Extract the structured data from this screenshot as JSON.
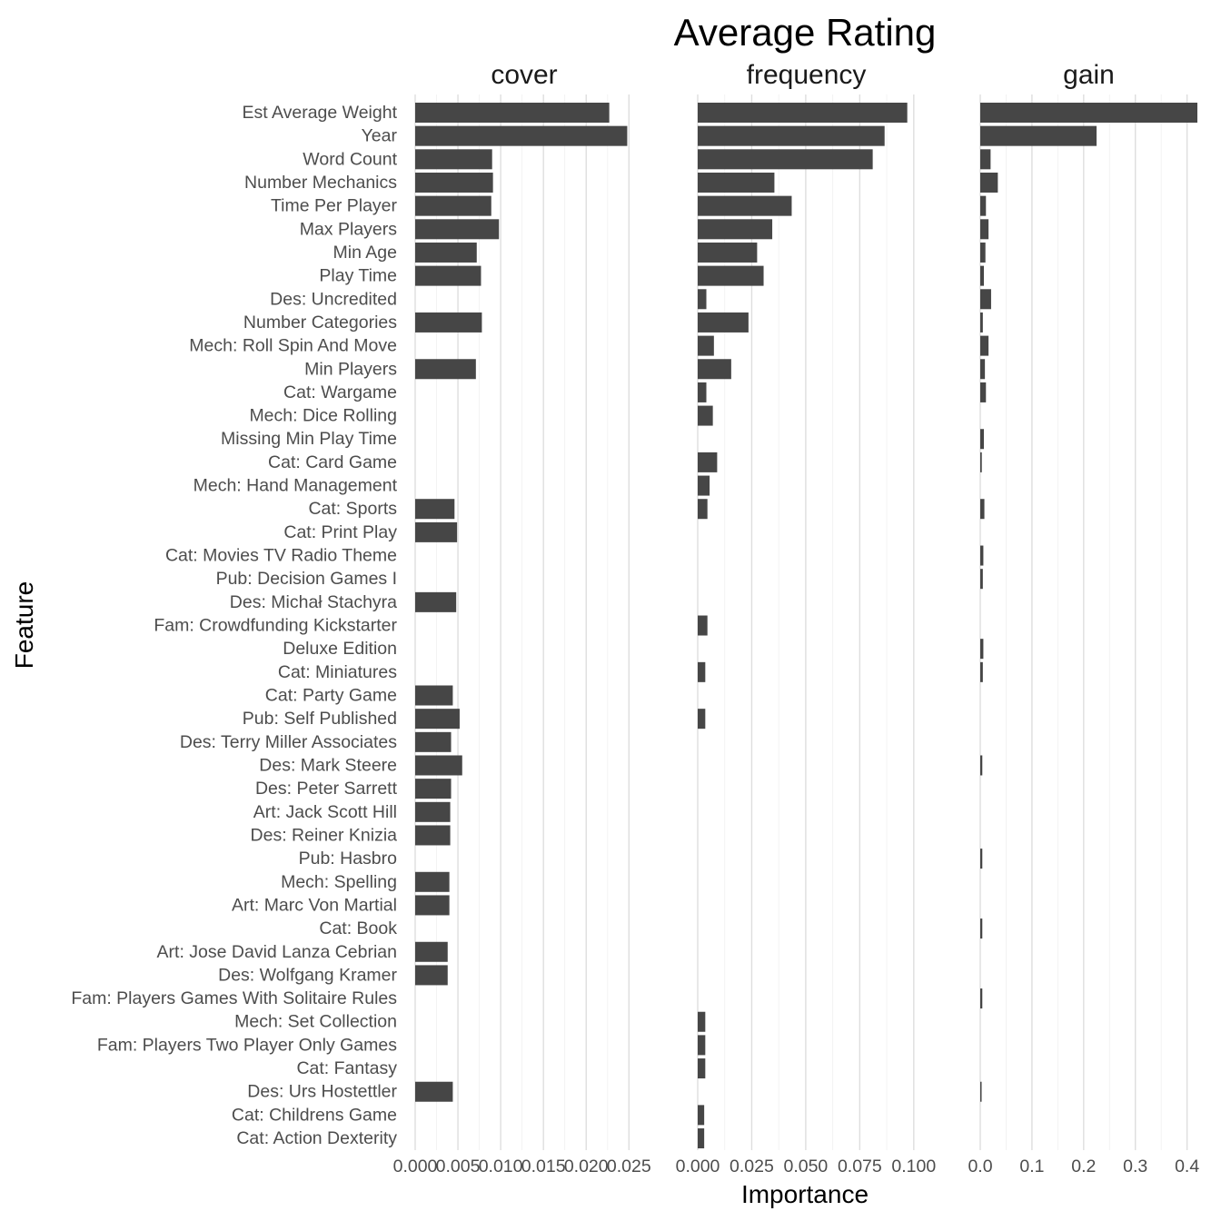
{
  "chart_data": {
    "type": "bar",
    "orientation": "horizontal",
    "title": "Average Rating",
    "xlabel": "Importance",
    "ylabel": "Feature",
    "grid": true,
    "bar_color": "#464646",
    "categories": [
      "Est Average Weight",
      "Year",
      "Word Count",
      "Number Mechanics",
      "Time Per Player",
      "Max Players",
      "Min Age",
      "Play Time",
      "Des: Uncredited",
      "Number Categories",
      "Mech: Roll Spin And Move",
      "Min Players",
      "Cat: Wargame",
      "Mech: Dice Rolling",
      "Missing Min Play Time",
      "Cat: Card Game",
      "Mech: Hand Management",
      "Cat: Sports",
      "Cat: Print Play",
      "Cat: Movies TV Radio Theme",
      "Pub: Decision Games I",
      "Des: Michał Stachyra",
      "Fam: Crowdfunding Kickstarter",
      "Deluxe Edition",
      "Cat: Miniatures",
      "Cat: Party Game",
      "Pub: Self Published",
      "Des: Terry Miller Associates",
      "Des: Mark Steere",
      "Des: Peter Sarrett",
      "Art: Jack Scott Hill",
      "Des: Reiner Knizia",
      "Pub: Hasbro",
      "Mech: Spelling",
      "Art: Marc Von Martial",
      "Cat: Book",
      "Art: Jose David Lanza Cebrian",
      "Des: Wolfgang Kramer",
      "Fam: Players Games With Solitaire Rules",
      "Mech: Set Collection",
      "Fam: Players Two Player Only Games",
      "Cat: Fantasy",
      "Des: Urs Hostettler",
      "Cat: Childrens Game",
      "Cat: Action Dexterity"
    ],
    "panels": [
      {
        "name": "cover",
        "xlim": [
          0,
          0.0255
        ],
        "ticks": [
          0.0,
          0.005,
          0.01,
          0.015,
          0.02,
          0.025
        ],
        "tick_labels": [
          "0.000",
          "0.005",
          "0.010",
          "0.015",
          "0.020",
          "0.025"
        ],
        "values": [
          0.0227,
          0.0248,
          0.009,
          0.0091,
          0.0089,
          0.0098,
          0.0072,
          0.0077,
          null,
          0.0078,
          null,
          0.0071,
          null,
          null,
          null,
          null,
          null,
          0.0046,
          0.0049,
          null,
          null,
          0.0048,
          null,
          null,
          null,
          0.0044,
          0.0052,
          0.0042,
          0.0055,
          0.0042,
          0.0041,
          0.0041,
          null,
          0.004,
          0.004,
          null,
          0.0038,
          0.0038,
          null,
          null,
          null,
          null,
          0.0044,
          null,
          null
        ]
      },
      {
        "name": "frequency",
        "xlim": [
          0,
          0.1005
        ],
        "ticks": [
          0.0,
          0.025,
          0.05,
          0.075,
          0.1
        ],
        "tick_labels": [
          "0.000",
          "0.025",
          "0.050",
          "0.075",
          "0.100"
        ],
        "values": [
          0.097,
          0.0865,
          0.081,
          0.0355,
          0.0435,
          0.0345,
          0.0275,
          0.0305,
          0.004,
          0.0235,
          0.0075,
          0.0155,
          0.004,
          0.007,
          null,
          0.009,
          0.0055,
          0.0045,
          null,
          null,
          null,
          null,
          0.0045,
          null,
          0.0035,
          null,
          0.0035,
          null,
          null,
          null,
          null,
          null,
          null,
          null,
          null,
          null,
          null,
          null,
          null,
          0.0035,
          0.0035,
          0.0035,
          null,
          0.003,
          0.003
        ]
      },
      {
        "name": "gain",
        "xlim": [
          0,
          0.42
        ],
        "ticks": [
          0.0,
          0.1,
          0.2,
          0.3,
          0.4
        ],
        "tick_labels": [
          "0.0",
          "0.1",
          "0.2",
          "0.3",
          "0.4"
        ],
        "values": [
          0.42,
          0.225,
          0.02,
          0.034,
          0.011,
          0.016,
          0.01,
          0.007,
          0.021,
          0.005,
          0.016,
          0.009,
          0.011,
          null,
          0.007,
          0.003,
          null,
          0.008,
          null,
          0.006,
          0.005,
          null,
          null,
          0.006,
          0.005,
          null,
          null,
          null,
          0.004,
          null,
          null,
          null,
          0.004,
          null,
          null,
          0.004,
          null,
          null,
          0.004,
          null,
          null,
          null,
          0.002,
          null,
          null
        ]
      }
    ]
  }
}
